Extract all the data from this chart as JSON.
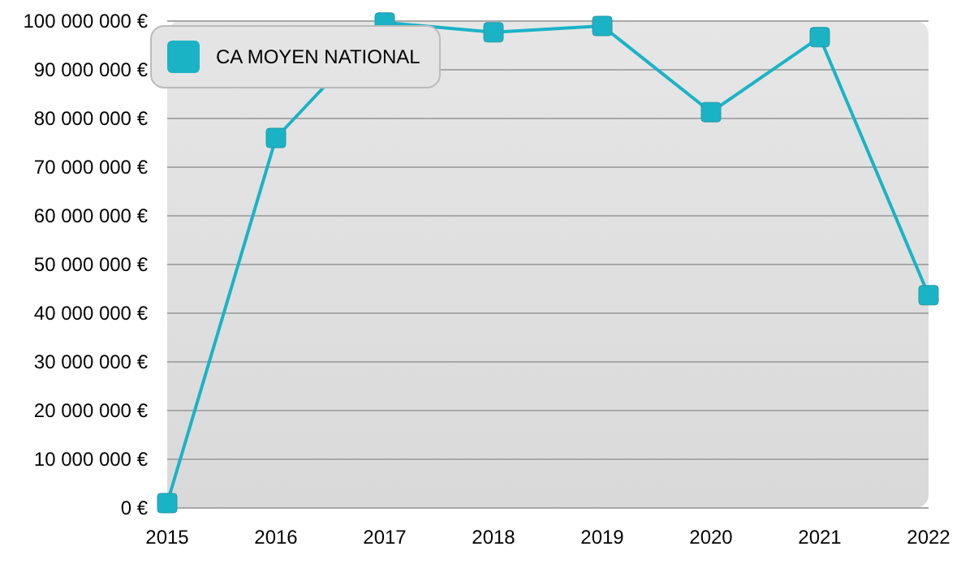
{
  "chart_data": {
    "type": "line",
    "x": [
      2015,
      2016,
      2017,
      2018,
      2019,
      2020,
      2021,
      2022
    ],
    "series": [
      {
        "name": "CA MOYEN NATIONAL",
        "color": "#1ab3c6",
        "values": [
          1000000,
          76000000,
          99700000,
          97700000,
          99000000,
          81300000,
          96700000,
          43700000
        ]
      }
    ],
    "xlim": [
      2015,
      2022
    ],
    "xticks": [
      2015,
      2016,
      2017,
      2018,
      2019,
      2020,
      2021,
      2022
    ],
    "ylim": [
      0,
      100000000
    ],
    "yticks": [
      {
        "value": 0,
        "label": "0 €"
      },
      {
        "value": 10000000,
        "label": "10 000 000 €"
      },
      {
        "value": 20000000,
        "label": "20 000 000 €"
      },
      {
        "value": 30000000,
        "label": "30 000 000 €"
      },
      {
        "value": 40000000,
        "label": "40 000 000 €"
      },
      {
        "value": 50000000,
        "label": "50 000 000 €"
      },
      {
        "value": 60000000,
        "label": "60 000 000 €"
      },
      {
        "value": 70000000,
        "label": "70 000 000 €"
      },
      {
        "value": 80000000,
        "label": "80 000 000 €"
      },
      {
        "value": 90000000,
        "label": "90 000 000 €"
      },
      {
        "value": 100000000,
        "label": "100 000 000 €"
      }
    ],
    "grid": "y",
    "legend": "top left",
    "marker": "square",
    "line_style": "solid"
  }
}
